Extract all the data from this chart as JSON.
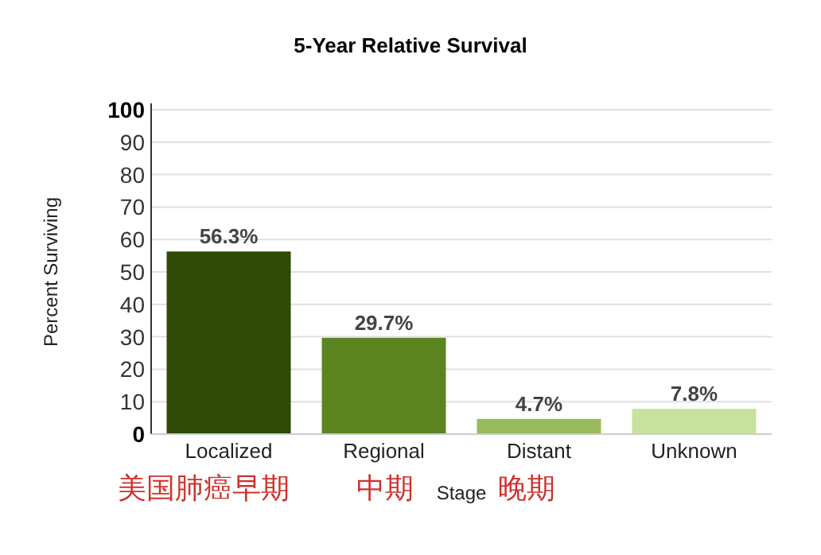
{
  "chart_data": {
    "type": "bar",
    "title": "5-Year Relative Survival",
    "xlabel": "Stage",
    "ylabel": "Percent Surviving",
    "categories": [
      "Localized",
      "Regional",
      "Distant",
      "Unknown"
    ],
    "values": [
      56.3,
      29.7,
      4.7,
      7.8
    ],
    "colors": [
      "#2f4a05",
      "#5c8522",
      "#99bb5e",
      "#c8e29d"
    ],
    "value_labels": [
      "56.3%",
      "29.7%",
      "4.7%",
      "7.8%"
    ],
    "ylim": [
      0,
      100
    ],
    "yticks": [
      0,
      10,
      20,
      30,
      40,
      50,
      60,
      70,
      80,
      90,
      100
    ],
    "grid": "y",
    "annotations": [
      "美国肺癌早期",
      "中期",
      "晚期"
    ]
  }
}
